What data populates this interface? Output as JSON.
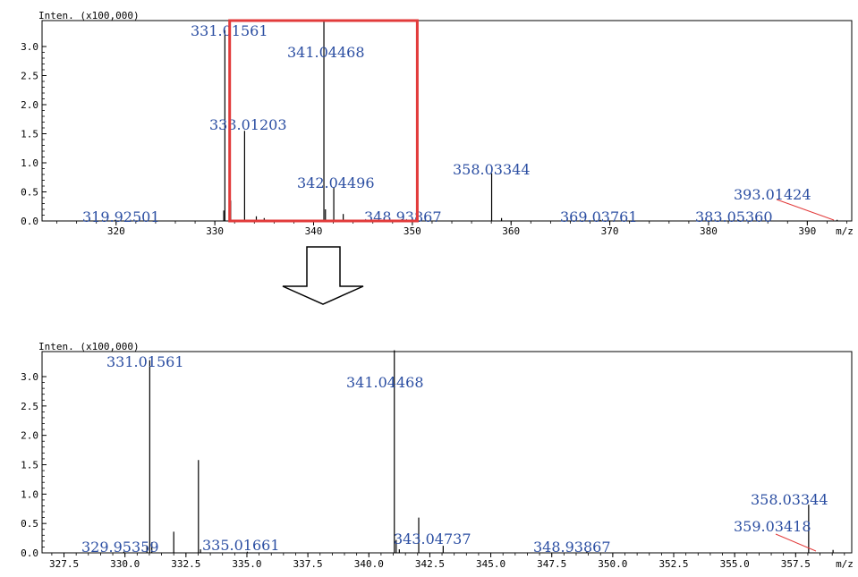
{
  "chart_data": [
    {
      "type": "bar",
      "ylabel": "Inten. (x100,000)",
      "xlabel": "m/z",
      "xlim": [
        312.5,
        394.5
      ],
      "ylim": [
        0,
        3.45
      ],
      "yticks": [
        "0.0",
        "0.5",
        "1.0",
        "1.5",
        "2.0",
        "2.5",
        "3.0"
      ],
      "xticks": [
        "320",
        "330",
        "340",
        "350",
        "360",
        "370",
        "380",
        "390"
      ],
      "peaks": [
        {
          "x": 319.92501,
          "y": 0.02
        },
        {
          "x": 330.9,
          "y": 0.18
        },
        {
          "x": 331.01561,
          "y": 3.28
        },
        {
          "x": 331.6,
          "y": 0.35
        },
        {
          "x": 333.01203,
          "y": 1.55
        },
        {
          "x": 334.2,
          "y": 0.08
        },
        {
          "x": 335.0,
          "y": 0.05
        },
        {
          "x": 341.04468,
          "y": 3.45
        },
        {
          "x": 341.2,
          "y": 0.2
        },
        {
          "x": 342.04496,
          "y": 0.58
        },
        {
          "x": 343.0,
          "y": 0.12
        },
        {
          "x": 348.93867,
          "y": 0.03
        },
        {
          "x": 358.03344,
          "y": 0.82
        },
        {
          "x": 359.03418,
          "y": 0.05
        },
        {
          "x": 369.03761,
          "y": 0.02
        },
        {
          "x": 383.0536,
          "y": 0.02
        },
        {
          "x": 393.01424,
          "y": 0.02
        }
      ],
      "labels": [
        {
          "x": 319.92501,
          "text": "319.92501"
        },
        {
          "x": 331.01561,
          "text": "331.01561"
        },
        {
          "x": 333.01203,
          "text": "333.01203"
        },
        {
          "x": 341.04468,
          "text": "341.04468"
        },
        {
          "x": 342.04496,
          "text": "342.04496"
        },
        {
          "x": 348.93867,
          "text": "348.93867"
        },
        {
          "x": 358.03344,
          "text": "358.03344"
        },
        {
          "x": 369.03761,
          "text": "369.03761"
        },
        {
          "x": 383.0536,
          "text": "383.05360"
        },
        {
          "x": 393.01424,
          "text": "393.01424"
        }
      ],
      "zoom_region": [
        331.5,
        350.5
      ],
      "grid": false,
      "legend": "none"
    },
    {
      "type": "bar",
      "ylabel": "Inten. (x100,000)",
      "xlabel": "m/z",
      "xlim": [
        326.6,
        359.8
      ],
      "ylim": [
        0,
        3.45
      ],
      "yticks": [
        "0.0",
        "0.5",
        "1.0",
        "1.5",
        "2.0",
        "2.5",
        "3.0"
      ],
      "xticks": [
        "327.5",
        "330.0",
        "332.5",
        "335.0",
        "337.5",
        "340.0",
        "342.5",
        "345.0",
        "347.5",
        "350.0",
        "352.5",
        "355.0",
        "357.5"
      ],
      "peaks": [
        {
          "x": 329.95359,
          "y": 0.02
        },
        {
          "x": 330.9,
          "y": 0.12
        },
        {
          "x": 331.01561,
          "y": 3.28
        },
        {
          "x": 331.1,
          "y": 0.18
        },
        {
          "x": 332.0,
          "y": 0.36
        },
        {
          "x": 333.01203,
          "y": 1.58
        },
        {
          "x": 333.1,
          "y": 0.06
        },
        {
          "x": 335.01661,
          "y": 0.02
        },
        {
          "x": 341.04468,
          "y": 3.45
        },
        {
          "x": 341.12,
          "y": 0.22
        },
        {
          "x": 341.25,
          "y": 0.06
        },
        {
          "x": 342.04496,
          "y": 0.6
        },
        {
          "x": 343.04737,
          "y": 0.12
        },
        {
          "x": 348.93867,
          "y": 0.03
        },
        {
          "x": 358.03344,
          "y": 0.82
        },
        {
          "x": 359.03418,
          "y": 0.05
        }
      ],
      "labels": [
        {
          "x": 329.95359,
          "text": "329.95359"
        },
        {
          "x": 331.01561,
          "text": "331.01561"
        },
        {
          "x": 335.01661,
          "text": "335.01661"
        },
        {
          "x": 341.04468,
          "text": "341.04468"
        },
        {
          "x": 343.04737,
          "text": "343.04737"
        },
        {
          "x": 348.93867,
          "text": "348.93867"
        },
        {
          "x": 358.03344,
          "text": "358.03344"
        },
        {
          "x": 359.03418,
          "text": "359.03418"
        }
      ],
      "grid": false,
      "legend": "none"
    }
  ],
  "colors": {
    "peak": "#000000",
    "label": "#2b4ea2",
    "highlight": "#e23b3b",
    "leader": "#e23b3b"
  },
  "arrow": {
    "icon": "down-arrow-icon"
  }
}
